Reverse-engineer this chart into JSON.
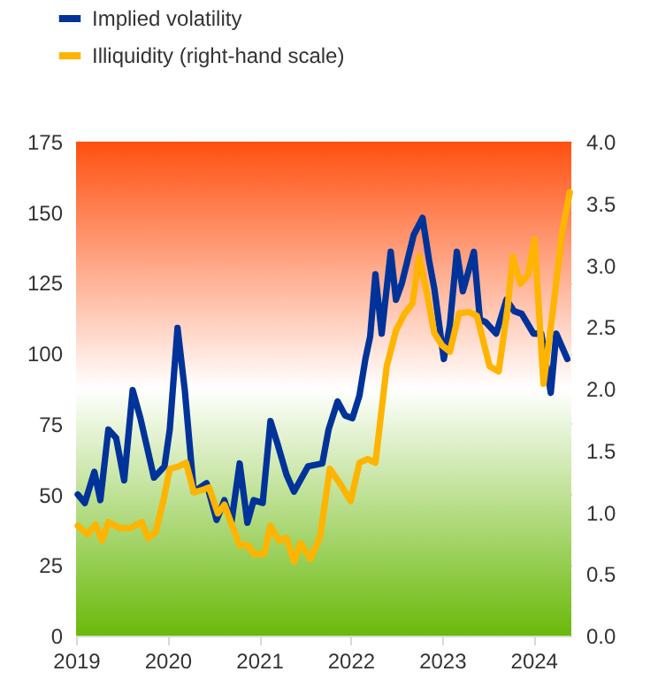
{
  "chart_data": {
    "type": "line",
    "xlim": [
      "2019-01-01",
      "2024-05-31"
    ],
    "xticks": [
      "2019",
      "2020",
      "2021",
      "2022",
      "2023",
      "2024"
    ],
    "ylim": [
      0,
      175
    ],
    "yticks": [
      0,
      25,
      50,
      75,
      100,
      125,
      150,
      175
    ],
    "y2lim": [
      0,
      4
    ],
    "y2ticks": [
      {
        "value": 0,
        "label": "0.0"
      },
      {
        "value": 0.5,
        "label": "0.5"
      },
      {
        "value": 1,
        "label": "1.0"
      },
      {
        "value": 1.5,
        "label": "1.5"
      },
      {
        "value": 2,
        "label": "2.0"
      },
      {
        "value": 2.5,
        "label": "2.5"
      },
      {
        "value": 3,
        "label": "3.0"
      },
      {
        "value": 3.5,
        "label": "3.5"
      },
      {
        "value": 4,
        "label": "4.0"
      }
    ],
    "grid": true,
    "legend": "top left",
    "line_style": "solid",
    "marker": "none",
    "bands": [
      {
        "axis": "y",
        "from": 0,
        "to": 87.5,
        "color": "#6ab90a"
      },
      {
        "axis": "y",
        "from": 87.5,
        "to": 175,
        "color": "#ff5010"
      }
    ],
    "series": [
      {
        "name": "Implied volatility",
        "color": "#003399",
        "x": [
          "2019-01-08",
          "2019-02-05",
          "2019-03-15",
          "2019-04-08",
          "2019-05-10",
          "2019-06-10",
          "2019-07-12",
          "2019-08-15",
          "2019-09-15",
          "2019-11-08",
          "2019-12-20",
          "2020-01-10",
          "2020-02-10",
          "2020-03-10",
          "2020-04-15",
          "2020-06-05",
          "2020-07-15",
          "2020-08-15",
          "2020-09-12",
          "2020-10-15",
          "2020-11-15",
          "2020-12-10",
          "2021-01-15",
          "2021-02-15",
          "2021-03-15",
          "2021-04-20",
          "2021-05-20",
          "2021-07-15",
          "2021-09-10",
          "2021-10-05",
          "2021-11-10",
          "2021-12-10",
          "2022-01-08",
          "2022-02-05",
          "2022-03-01",
          "2022-03-20",
          "2022-04-10",
          "2022-05-05",
          "2022-06-10",
          "2022-07-01",
          "2022-07-25",
          "2022-09-10",
          "2022-10-15",
          "2022-11-10",
          "2022-12-01",
          "2023-01-08",
          "2023-02-01",
          "2023-03-01",
          "2023-03-25",
          "2023-05-08",
          "2023-06-01",
          "2023-06-25",
          "2023-08-05",
          "2023-09-15",
          "2023-10-15",
          "2023-11-15",
          "2024-01-01",
          "2024-02-01",
          "2024-03-10",
          "2024-04-01",
          "2024-05-15"
        ],
        "values": [
          50,
          47,
          58,
          48,
          73,
          70,
          55,
          87,
          77,
          56,
          60,
          73,
          109,
          87,
          51,
          54,
          41,
          48,
          40,
          61,
          40,
          48,
          47,
          76,
          68,
          57,
          51,
          60,
          61,
          73,
          83,
          78,
          77,
          85,
          98,
          106,
          128,
          107,
          136,
          119,
          125,
          142,
          148,
          133,
          123,
          98,
          110,
          136,
          122,
          136,
          112,
          111,
          107,
          119,
          115,
          114,
          107,
          107,
          86,
          107,
          98
        ]
      },
      {
        "name": "Illiquidity (right-hand scale)",
        "color": "#ffb400",
        "axis": "y2",
        "x": [
          "2019-01-08",
          "2019-02-15",
          "2019-03-20",
          "2019-04-15",
          "2019-05-10",
          "2019-06-25",
          "2019-08-05",
          "2019-09-20",
          "2019-10-15",
          "2019-11-15",
          "2019-12-15",
          "2020-01-10",
          "2020-02-15",
          "2020-03-15",
          "2020-04-15",
          "2020-05-20",
          "2020-06-15",
          "2020-07-20",
          "2020-08-15",
          "2020-09-10",
          "2020-10-15",
          "2020-11-20",
          "2020-12-10",
          "2021-01-20",
          "2021-02-15",
          "2021-03-20",
          "2021-04-20",
          "2021-05-20",
          "2021-06-15",
          "2021-07-25",
          "2021-09-01",
          "2021-10-10",
          "2021-11-20",
          "2022-01-01",
          "2022-02-05",
          "2022-03-10",
          "2022-04-10",
          "2022-04-25",
          "2022-05-25",
          "2022-07-01",
          "2022-08-05",
          "2022-09-05",
          "2022-10-01",
          "2022-11-01",
          "2022-12-01",
          "2023-01-01",
          "2023-02-01",
          "2023-03-10",
          "2023-04-20",
          "2023-05-20",
          "2023-07-10",
          "2023-08-15",
          "2023-09-20",
          "2023-10-10",
          "2023-11-10",
          "2023-12-10",
          "2024-01-05",
          "2024-02-10",
          "2024-03-20",
          "2024-04-25",
          "2024-05-25"
        ],
        "values": [
          0.89,
          0.82,
          0.9,
          0.77,
          0.92,
          0.87,
          0.87,
          0.92,
          0.79,
          0.84,
          1.09,
          1.35,
          1.37,
          1.4,
          1.16,
          1.18,
          1.2,
          0.99,
          1.06,
          0.92,
          0.73,
          0.73,
          0.66,
          0.66,
          0.89,
          0.77,
          0.79,
          0.6,
          0.75,
          0.62,
          0.8,
          1.35,
          1.23,
          1.09,
          1.4,
          1.43,
          1.4,
          1.66,
          2.18,
          2.47,
          2.61,
          2.69,
          3.07,
          2.78,
          2.45,
          2.35,
          2.3,
          2.61,
          2.62,
          2.59,
          2.18,
          2.14,
          2.66,
          3.07,
          2.85,
          2.92,
          3.21,
          2.04,
          2.66,
          3.28,
          3.59
        ]
      }
    ]
  }
}
